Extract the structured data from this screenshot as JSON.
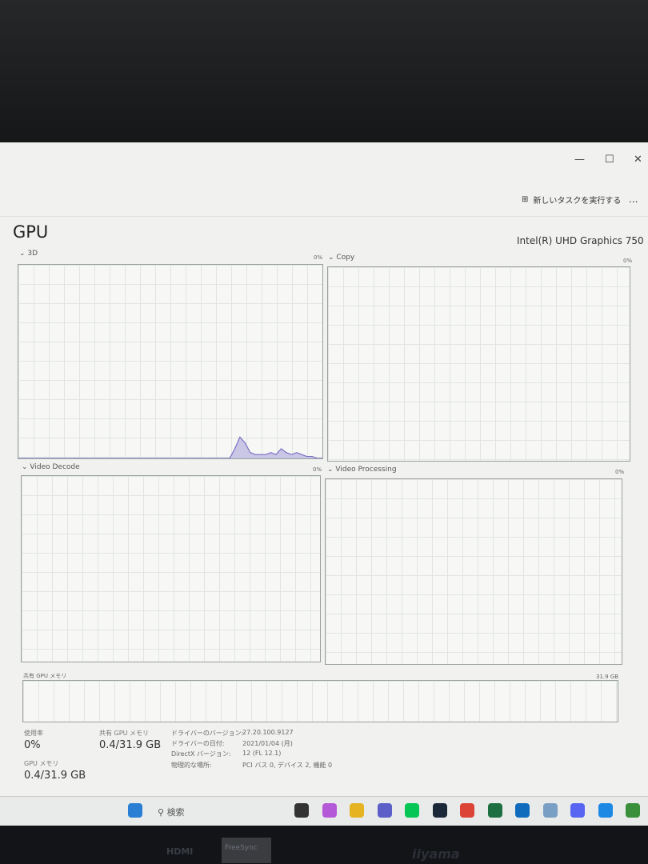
{
  "window": {
    "minimize": "—",
    "maximize": "☐",
    "close": "✕"
  },
  "toolbar": {
    "run_new_task": "新しいタスクを実行する",
    "more": "..."
  },
  "title": "GPU",
  "gpu_name": "Intel(R) UHD Graphics 750",
  "graphs": [
    {
      "label": "3D",
      "value": "0%",
      "usage": [
        0,
        0,
        0,
        0,
        0,
        0,
        0,
        0,
        0,
        0,
        0,
        0,
        0,
        0,
        0,
        0,
        0,
        0,
        0,
        0,
        0,
        0,
        0,
        0,
        0,
        0,
        0,
        0,
        0,
        0,
        0,
        0,
        0,
        0,
        0,
        0,
        0,
        0,
        0,
        0,
        0,
        0,
        5,
        11,
        8,
        3,
        2,
        2,
        2,
        3,
        2,
        5,
        3,
        2,
        3,
        2,
        1,
        1,
        0,
        0
      ]
    },
    {
      "label": "Copy",
      "value": "0%"
    },
    {
      "label": "Video Decode",
      "value": "0%"
    },
    {
      "label": "Video Processing",
      "value": "0%"
    }
  ],
  "shared_memory_graph": {
    "label": "共有 GPU メモリ",
    "max": "31.9 GB"
  },
  "stats": {
    "utilization_label": "使用率",
    "utilization": "0%",
    "gpu_memory_label": "GPU メモリ",
    "gpu_memory": "0.4/31.9 GB",
    "shared_memory_label": "共有 GPU メモリ",
    "shared_memory": "0.4/31.9 GB"
  },
  "info": [
    {
      "k": "ドライバーのバージョン:",
      "v": "27.20.100.9127"
    },
    {
      "k": "ドライバーの日付:",
      "v": "2021/01/04 (月)"
    },
    {
      "k": "DirectX バージョン:",
      "v": "12 (FL 12.1)"
    },
    {
      "k": "物理的な場所:",
      "v": "PCI バス 0, デバイス 2, 機能 0"
    }
  ],
  "taskbar": {
    "search": "検索",
    "icons": [
      "task-view",
      "copilot",
      "file-explorer",
      "teams",
      "line",
      "steam",
      "chrome",
      "excel",
      "outlook",
      "photos",
      "discord",
      "vscode",
      "vim"
    ]
  },
  "monitor": {
    "brand": "iiyama",
    "port": "HDMI",
    "freesync": "FreeSync"
  }
}
